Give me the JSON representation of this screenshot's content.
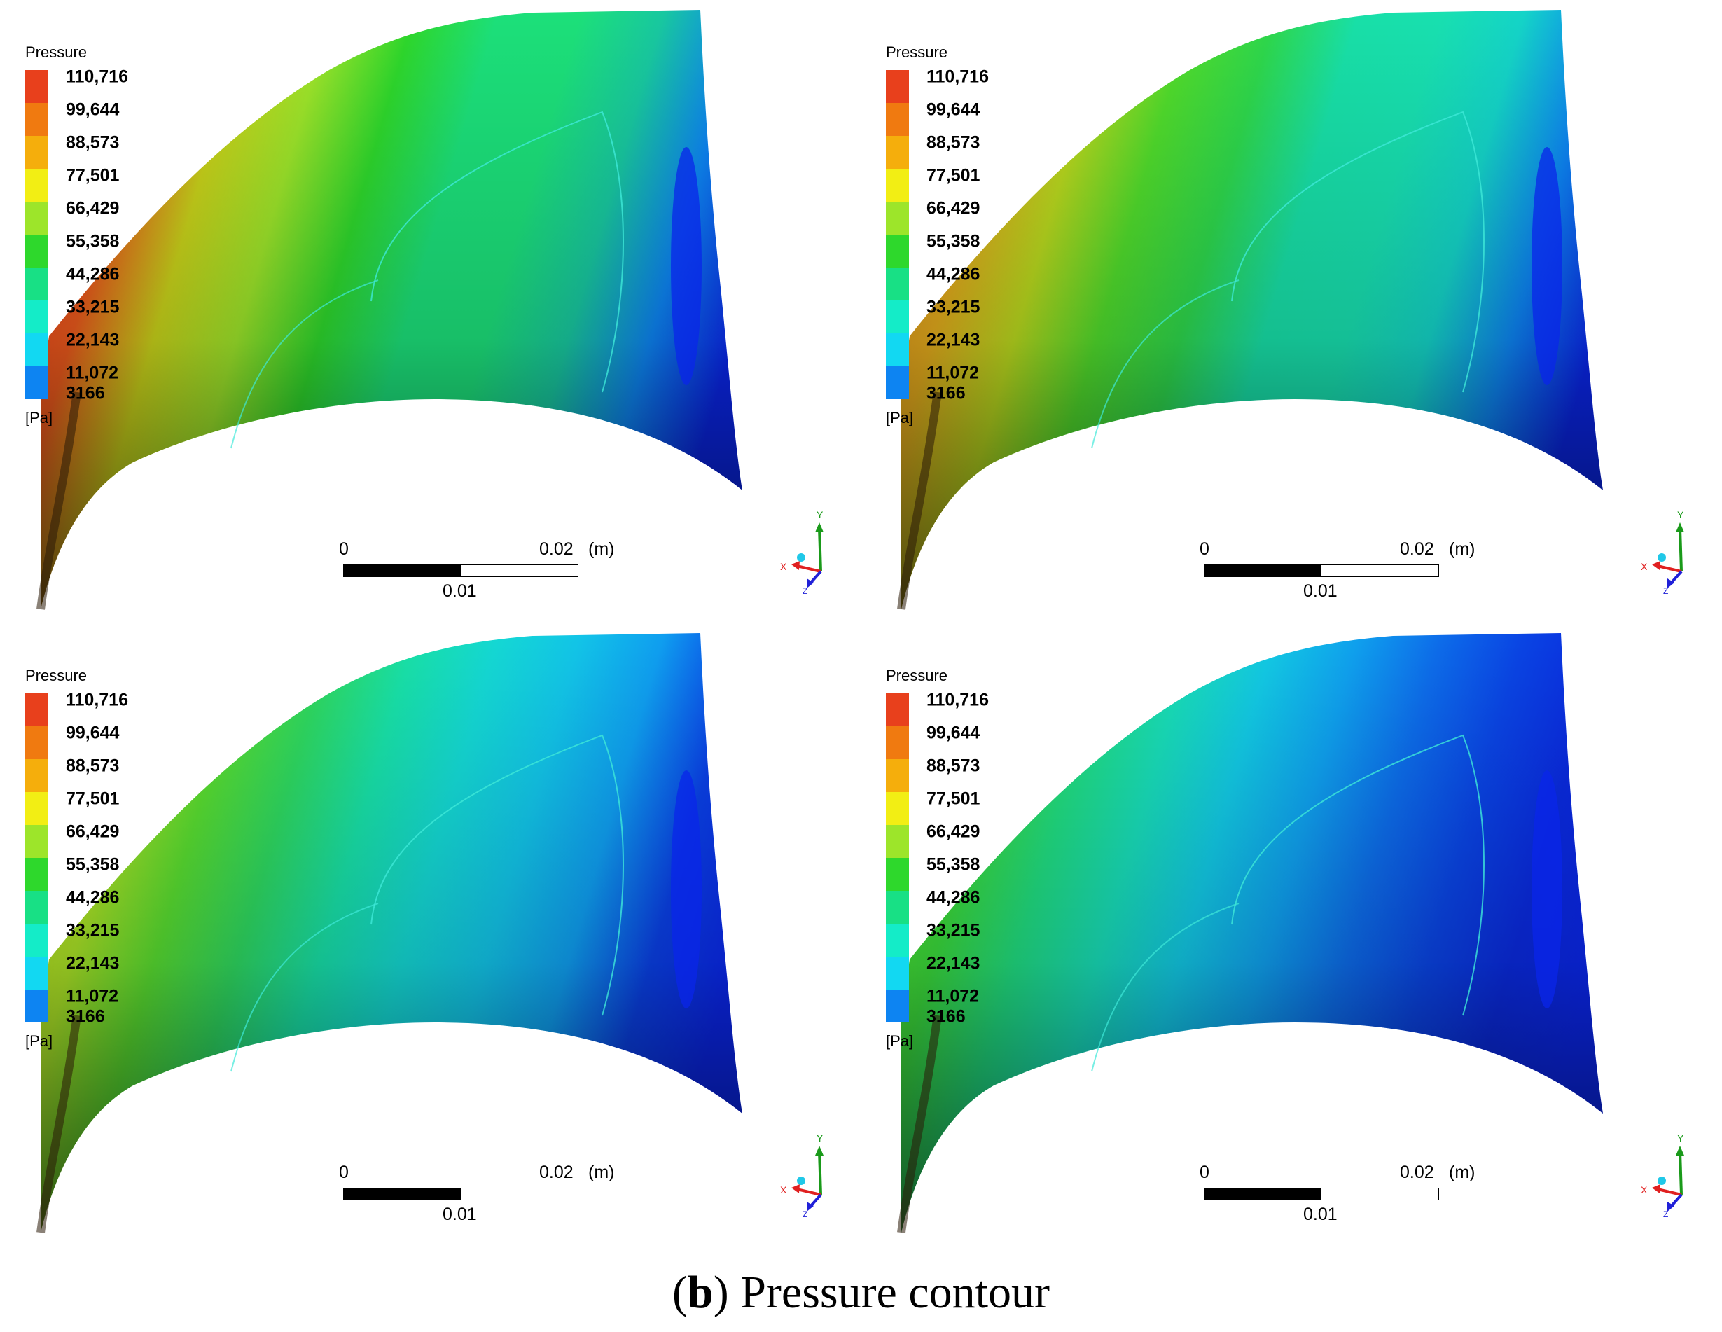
{
  "caption": {
    "label": "b",
    "text": "Pressure contour"
  },
  "legend": {
    "title": "Pressure",
    "unit": "[Pa]",
    "ticks": [
      "110,716",
      "99,644",
      "88,573",
      "77,501",
      "66,429",
      "55,358",
      "44,286",
      "33,215",
      "22,143",
      "11,072",
      "3166"
    ],
    "colors": [
      "#e8401c",
      "#f07a10",
      "#f5ae0c",
      "#f2ee14",
      "#9de52a",
      "#2ed82c",
      "#18e085",
      "#14ecc8",
      "#12d8f2",
      "#0d84f2",
      "#0a26ea"
    ]
  },
  "scale_bar": {
    "zero": "0",
    "max": "0.02",
    "unit": "(m)",
    "mid": "0.01"
  },
  "axes_triad": {
    "y": "Y",
    "x": "X",
    "z": "Z"
  },
  "panels": [
    {
      "name": "panel-top-left"
    },
    {
      "name": "panel-top-right"
    },
    {
      "name": "panel-bottom-left"
    },
    {
      "name": "panel-bottom-right"
    }
  ]
}
